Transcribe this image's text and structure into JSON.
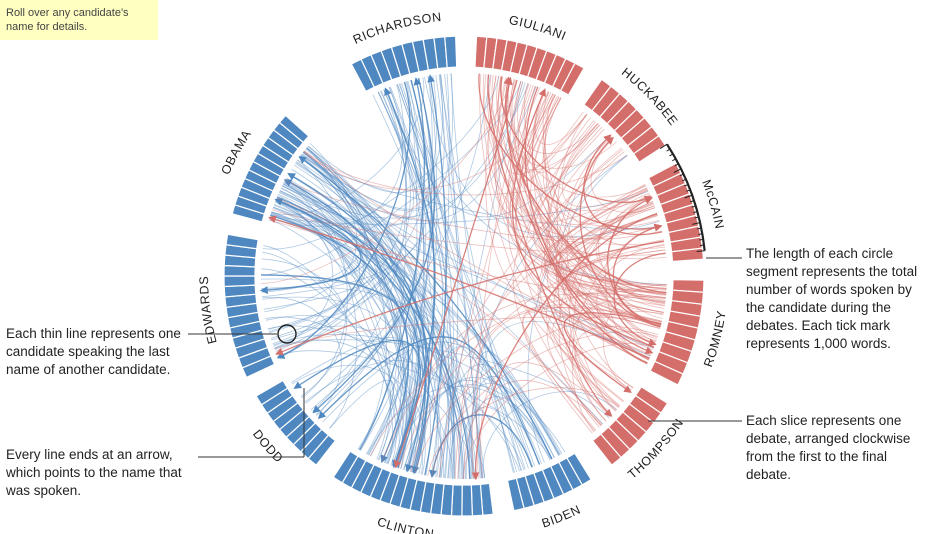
{
  "hint": "Roll over any candidate's name for details.",
  "colors": {
    "democrat": "#4f88c0",
    "republican": "#d46e6a",
    "tick": "#222222"
  },
  "candidates": [
    {
      "id": "richardson",
      "label": "RICHARDSON",
      "party": "D",
      "slices": 10
    },
    {
      "id": "giuliani",
      "label": "GIULIANI",
      "party": "R",
      "slices": 11
    },
    {
      "id": "huckabee",
      "label": "HUCKABEE",
      "party": "R",
      "slices": 8
    },
    {
      "id": "mccain",
      "label": "McCAIN",
      "party": "R",
      "slices": 9
    },
    {
      "id": "romney",
      "label": "ROMNEY",
      "party": "R",
      "slices": 9
    },
    {
      "id": "thompson",
      "label": "THOMPSON",
      "party": "R",
      "slices": 7
    },
    {
      "id": "biden",
      "label": "BIDEN",
      "party": "D",
      "slices": 8
    },
    {
      "id": "clinton",
      "label": "CLINTON",
      "party": "D",
      "slices": 16
    },
    {
      "id": "dodd",
      "label": "DODD",
      "party": "D",
      "slices": 9
    },
    {
      "id": "edwards",
      "label": "EDWARDS",
      "party": "D",
      "slices": 14
    },
    {
      "id": "obama",
      "label": "OBAMA",
      "party": "D",
      "slices": 12
    }
  ],
  "notes": {
    "segment_length": "The length of each circle segment represents the total number of words spoken by the candidate during the debates. Each tick mark represents 1,000 words.",
    "thin_line": "Each thin line represents one candidate speaking the last name of another candidate.",
    "arrow": "Every line ends at an arrow, which points to the name that was spoken.",
    "slice": "Each slice represents one debate, arranged clockwise from the first to the final debate."
  }
}
